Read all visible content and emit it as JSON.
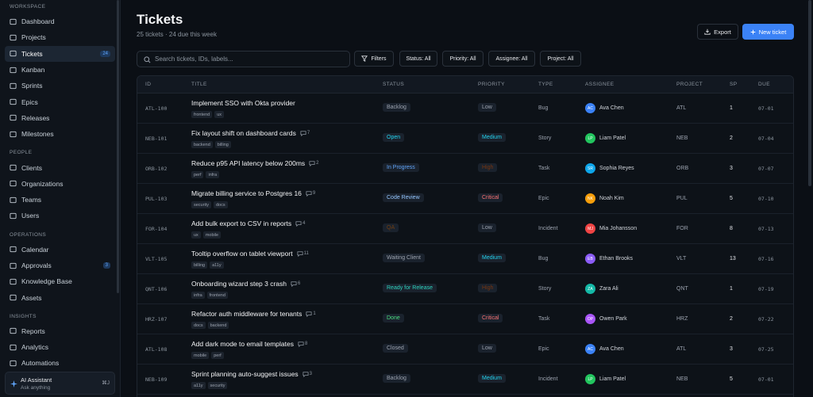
{
  "sidebar": {
    "sections": [
      {
        "title": "WORKSPACE",
        "items": [
          {
            "label": "Dashboard"
          },
          {
            "label": "Projects"
          },
          {
            "label": "Tickets",
            "badge": "24",
            "active": true
          },
          {
            "label": "Kanban"
          },
          {
            "label": "Sprints"
          },
          {
            "label": "Epics"
          },
          {
            "label": "Releases"
          },
          {
            "label": "Milestones"
          }
        ]
      },
      {
        "title": "PEOPLE",
        "items": [
          {
            "label": "Clients"
          },
          {
            "label": "Organizations"
          },
          {
            "label": "Teams"
          },
          {
            "label": "Users"
          }
        ]
      },
      {
        "title": "OPERATIONS",
        "items": [
          {
            "label": "Calendar"
          },
          {
            "label": "Approvals",
            "badge": "3"
          },
          {
            "label": "Knowledge Base"
          },
          {
            "label": "Assets"
          }
        ]
      },
      {
        "title": "INSIGHTS",
        "items": [
          {
            "label": "Reports"
          },
          {
            "label": "Analytics"
          },
          {
            "label": "Automations"
          }
        ]
      }
    ],
    "assistant": {
      "title": "AI Assistant",
      "subtitle": "Ask anything",
      "shortcut": "⌘J"
    }
  },
  "header": {
    "title": "Tickets",
    "subtitle": "25 tickets · 24 due this week",
    "export": "Export",
    "new_ticket": "New ticket"
  },
  "toolbar": {
    "search_placeholder": "Search tickets, IDs, labels...",
    "filters": "Filters",
    "dropdowns": [
      "Status: All",
      "Priority: All",
      "Assignee: All",
      "Project: All"
    ]
  },
  "table": {
    "columns": [
      "ID",
      "TITLE",
      "STATUS",
      "PRIORITY",
      "TYPE",
      "ASSIGNEE",
      "PROJECT",
      "SP",
      "DUE"
    ],
    "rows": [
      {
        "id": "ATL-100",
        "title": "Implement SSO with Okta provider",
        "comments": null,
        "tags": [
          "frontend",
          "ux"
        ],
        "status": "Backlog",
        "status_color": "#9ca3af",
        "priority": "Low",
        "priority_color": "#9ca3af",
        "type": "Bug",
        "initials": "AC",
        "avatar_color": "#3b82f6",
        "assignee": "Ava Chen",
        "project": "ATL",
        "sp": "1",
        "due": "07-01"
      },
      {
        "id": "NEB-101",
        "title": "Fix layout shift on dashboard cards",
        "comments": "7",
        "tags": [
          "backend",
          "billing"
        ],
        "status": "Open",
        "status_color": "#22d3ee",
        "priority": "Medium",
        "priority_color": "#22d3ee",
        "type": "Story",
        "initials": "LP",
        "avatar_color": "#22c55e",
        "assignee": "Liam Patel",
        "project": "NEB",
        "sp": "2",
        "due": "07-04"
      },
      {
        "id": "ORB-102",
        "title": "Reduce p95 API latency below 200ms",
        "comments": "2",
        "tags": [
          "perf",
          "infra"
        ],
        "status": "In Progress",
        "status_color": "#60a5fa",
        "priority": "High",
        "priority_color": "#78350f",
        "type": "Task",
        "initials": "SR",
        "avatar_color": "#0ea5e9",
        "assignee": "Sophia Reyes",
        "project": "ORB",
        "sp": "3",
        "due": "07-07"
      },
      {
        "id": "PUL-103",
        "title": "Migrate billing service to Postgres 16",
        "comments": "9",
        "tags": [
          "security",
          "docs"
        ],
        "status": "Code Review",
        "status_color": "#93c5fd",
        "priority": "Critical",
        "priority_color": "#f87171",
        "type": "Epic",
        "initials": "NK",
        "avatar_color": "#f59e0b",
        "assignee": "Noah Kim",
        "project": "PUL",
        "sp": "5",
        "due": "07-10"
      },
      {
        "id": "FOR-104",
        "title": "Add bulk export to CSV in reports",
        "comments": "4",
        "tags": [
          "ux",
          "mobile"
        ],
        "status": "QA",
        "status_color": "#713f12",
        "priority": "Low",
        "priority_color": "#9ca3af",
        "type": "Incident",
        "initials": "MJ",
        "avatar_color": "#ef4444",
        "assignee": "Mia Johansson",
        "project": "FOR",
        "sp": "8",
        "due": "07-13"
      },
      {
        "id": "VLT-105",
        "title": "Tooltip overflow on tablet viewport",
        "comments": "11",
        "tags": [
          "billing",
          "a11y"
        ],
        "status": "Waiting Client",
        "status_color": "#9ca3af",
        "priority": "Medium",
        "priority_color": "#22d3ee",
        "type": "Bug",
        "initials": "EB",
        "avatar_color": "#8b5cf6",
        "assignee": "Ethan Brooks",
        "project": "VLT",
        "sp": "13",
        "due": "07-16"
      },
      {
        "id": "QNT-106",
        "title": "Onboarding wizard step 3 crash",
        "comments": "6",
        "tags": [
          "infra",
          "frontend"
        ],
        "status": "Ready for Release",
        "status_color": "#2dd4bf",
        "priority": "High",
        "priority_color": "#78350f",
        "type": "Story",
        "initials": "ZA",
        "avatar_color": "#14b8a6",
        "assignee": "Zara Ali",
        "project": "QNT",
        "sp": "1",
        "due": "07-19"
      },
      {
        "id": "HRZ-107",
        "title": "Refactor auth middleware for tenants",
        "comments": "1",
        "tags": [
          "docs",
          "backend"
        ],
        "status": "Done",
        "status_color": "#4ade80",
        "priority": "Critical",
        "priority_color": "#f87171",
        "type": "Task",
        "initials": "OP",
        "avatar_color": "#a855f7",
        "assignee": "Owen Park",
        "project": "HRZ",
        "sp": "2",
        "due": "07-22"
      },
      {
        "id": "ATL-108",
        "title": "Add dark mode to email templates",
        "comments": "8",
        "tags": [
          "mobile",
          "perf"
        ],
        "status": "Closed",
        "status_color": "#9ca3af",
        "priority": "Low",
        "priority_color": "#9ca3af",
        "type": "Epic",
        "initials": "AC",
        "avatar_color": "#3b82f6",
        "assignee": "Ava Chen",
        "project": "ATL",
        "sp": "3",
        "due": "07-25"
      },
      {
        "id": "NEB-109",
        "title": "Sprint planning auto-suggest issues",
        "comments": "3",
        "tags": [
          "a11y",
          "security"
        ],
        "status": "Backlog",
        "status_color": "#9ca3af",
        "priority": "Medium",
        "priority_color": "#22d3ee",
        "type": "Incident",
        "initials": "LP",
        "avatar_color": "#22c55e",
        "assignee": "Liam Patel",
        "project": "NEB",
        "sp": "5",
        "due": "07-01"
      }
    ]
  }
}
